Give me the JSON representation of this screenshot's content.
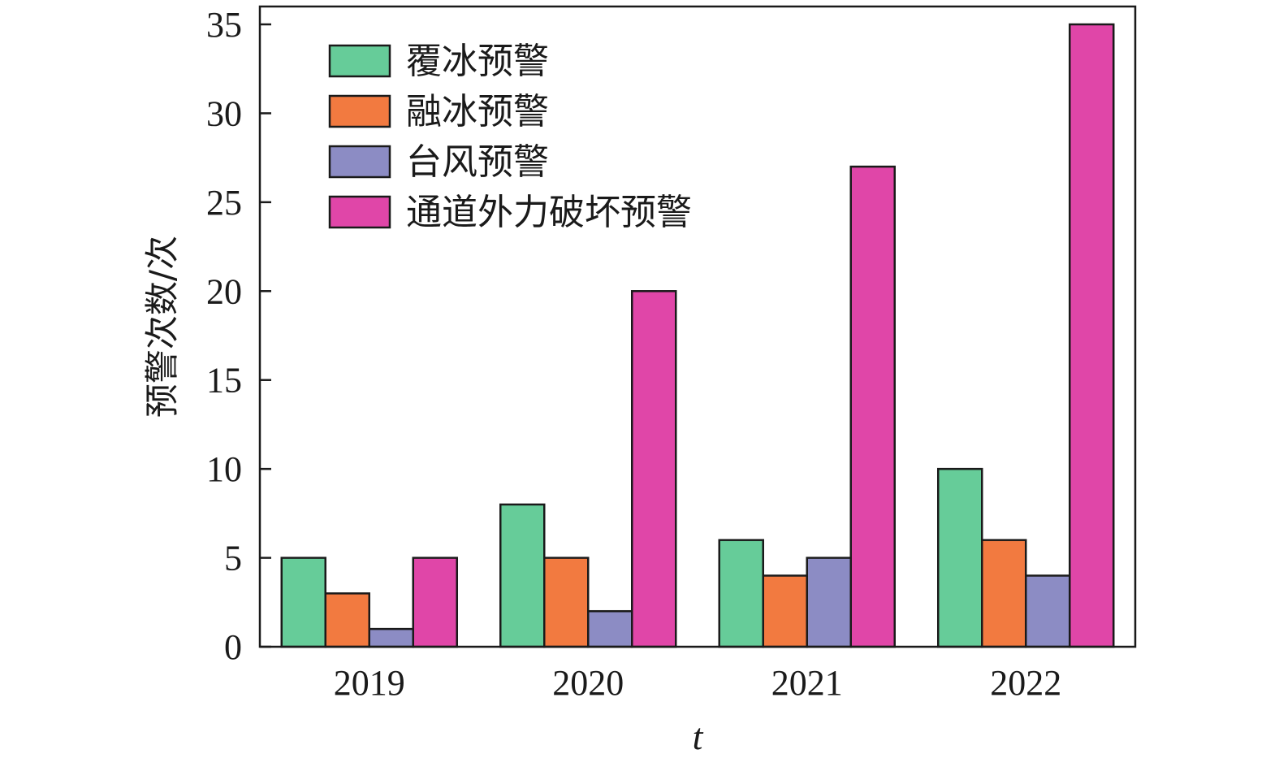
{
  "chart_data": {
    "type": "bar",
    "categories": [
      "2019",
      "2020",
      "2021",
      "2022"
    ],
    "series": [
      {
        "name": "覆冰预警",
        "values": [
          5,
          8,
          6,
          10
        ],
        "color": "#66cc99"
      },
      {
        "name": "融冰预警",
        "values": [
          3,
          5,
          4,
          6
        ],
        "color": "#f27a40"
      },
      {
        "name": "台风预警",
        "values": [
          1,
          2,
          5,
          4
        ],
        "color": "#8c8cc4"
      },
      {
        "name": "通道外力破坏预警",
        "values": [
          5,
          20,
          27,
          35
        ],
        "color": "#e046a8"
      }
    ],
    "title": "",
    "xlabel": "t",
    "ylabel": "预警次数/次",
    "ylim": [
      0,
      35
    ],
    "yticks": [
      "0",
      "5",
      "10",
      "15",
      "20",
      "25",
      "30",
      "35"
    ],
    "grid": false,
    "legend_position": "top-left"
  }
}
